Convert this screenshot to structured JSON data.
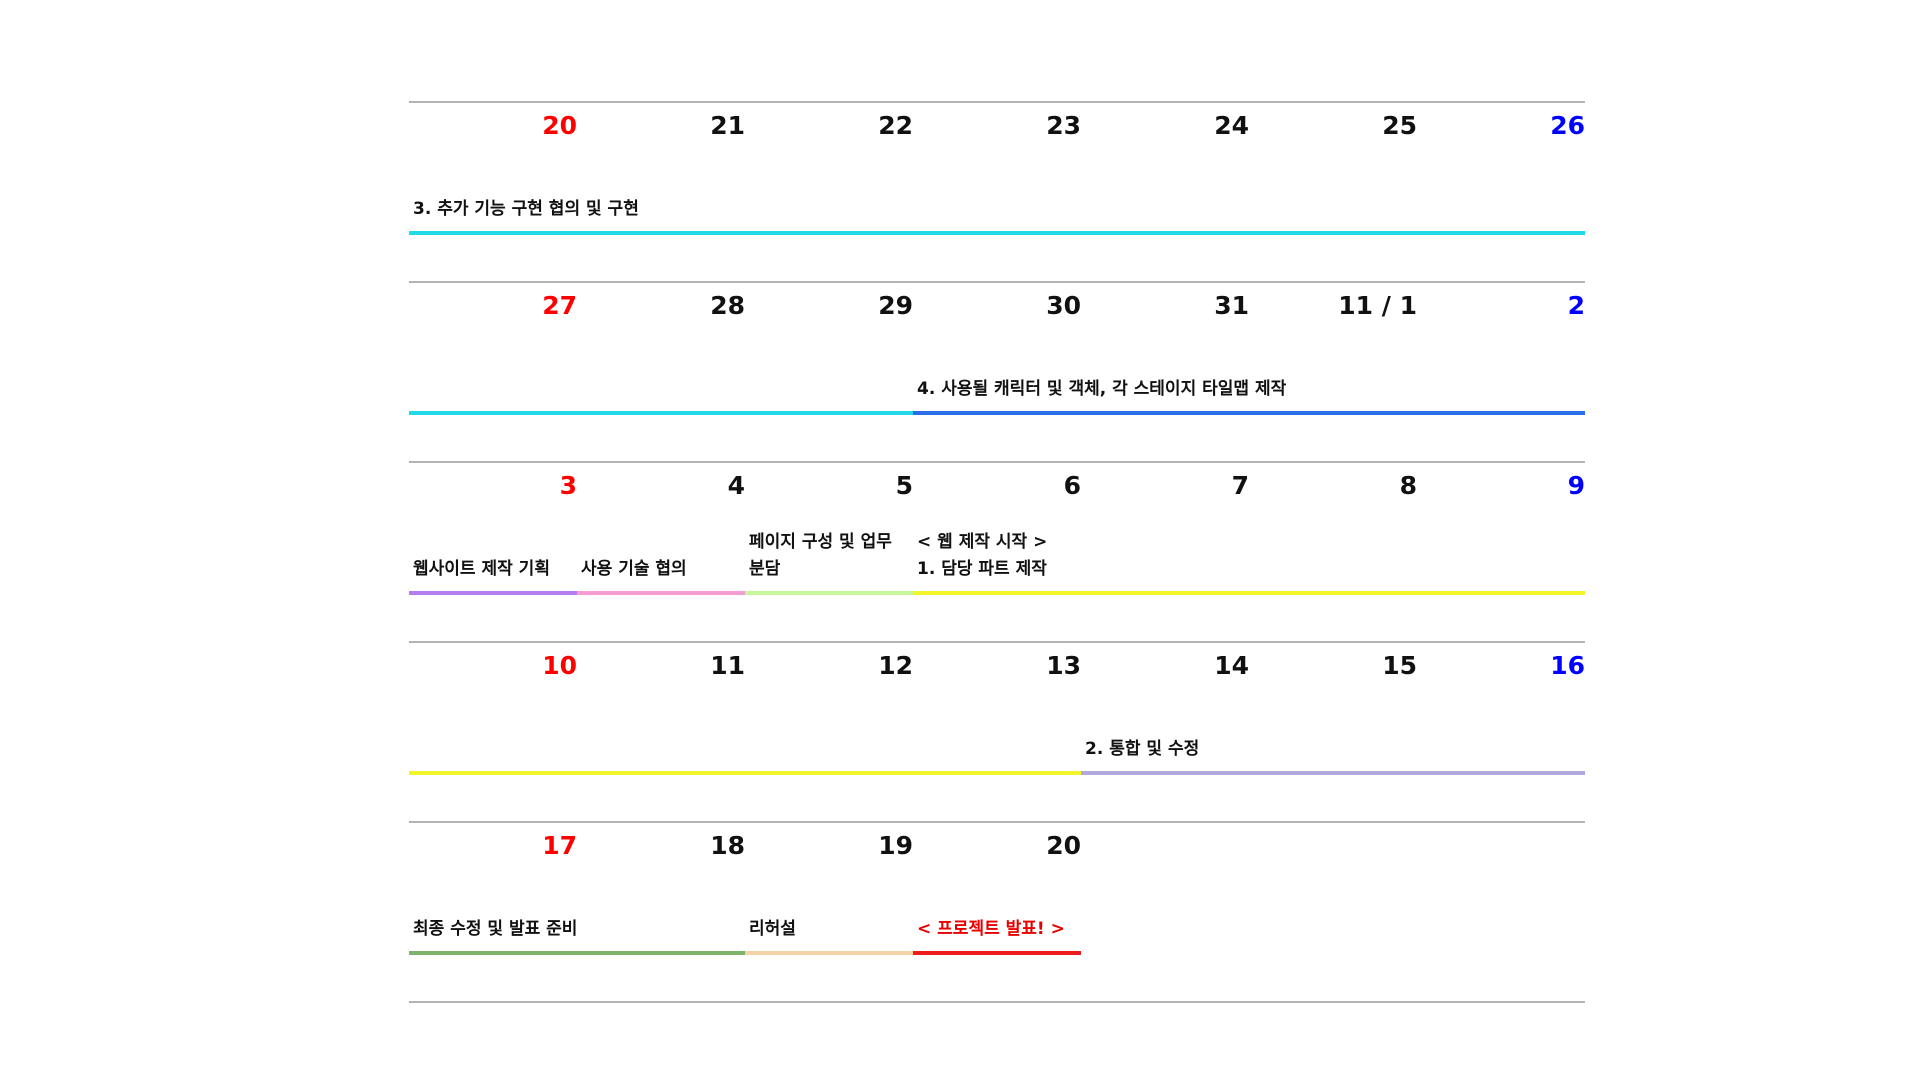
{
  "weeks": [
    {
      "days": [
        "20",
        "21",
        "22",
        "23",
        "24",
        "25",
        "26"
      ],
      "events": [
        {
          "label": "3. 추가 기능 구현 협의 및 구현",
          "color": "#22d9e8",
          "start": 0,
          "end": 7,
          "label_line": 1
        }
      ]
    },
    {
      "days": [
        "27",
        "28",
        "29",
        "30",
        "31",
        "11 / 1",
        "2"
      ],
      "events": [
        {
          "label": "",
          "color": "#22d9e8",
          "start": 0,
          "end": 3
        },
        {
          "label": "4. 사용될 캐릭터 및 객체, 각 스테이지 타일맵 제작",
          "color": "#2a6fe8",
          "start": 3,
          "end": 7,
          "label_line": 1
        }
      ]
    },
    {
      "days": [
        "3",
        "4",
        "5",
        "6",
        "7",
        "8",
        "9"
      ],
      "events": [
        {
          "label": "웹사이트 제작 기획",
          "color": "#b67cf2",
          "start": 0,
          "end": 1,
          "label_line": 1
        },
        {
          "label": "사용 기술 협의",
          "color": "#f79bd3",
          "start": 1,
          "end": 2,
          "label_line": 1
        },
        {
          "label": "페이지 구성 및 업무\n분담",
          "color": "#c6f79a",
          "start": 2,
          "end": 3,
          "label_line": 2
        },
        {
          "label": "< 웹 제작 시작 >\n1. 담당 파트 제작",
          "color": "#f4f42a",
          "start": 3,
          "end": 7,
          "label_line": 2
        }
      ]
    },
    {
      "days": [
        "10",
        "11",
        "12",
        "13",
        "14",
        "15",
        "16"
      ],
      "events": [
        {
          "label": "",
          "color": "#f4f42a",
          "start": 0,
          "end": 4
        },
        {
          "label": "2. 통합 및 수정",
          "color": "#b3a8de",
          "start": 4,
          "end": 7,
          "label_line": 1
        }
      ]
    },
    {
      "days": [
        "17",
        "18",
        "19",
        "20",
        "",
        "",
        ""
      ],
      "events": [
        {
          "label": "최종 수정 및 발표 준비",
          "color": "#7bb46a",
          "start": 0,
          "end": 2,
          "label_line": 1
        },
        {
          "label": "리허설",
          "color": "#f5d2a8",
          "start": 2,
          "end": 3,
          "label_line": 1
        },
        {
          "label": "< 프로젝트 발표! >",
          "color": "#ee1c1c",
          "start": 3,
          "end": 4,
          "label_line": 1,
          "red": true
        }
      ]
    }
  ],
  "colors": {
    "sunday": "#ff0000",
    "saturday": "#0000ff",
    "rule": "#b3b3b3"
  }
}
